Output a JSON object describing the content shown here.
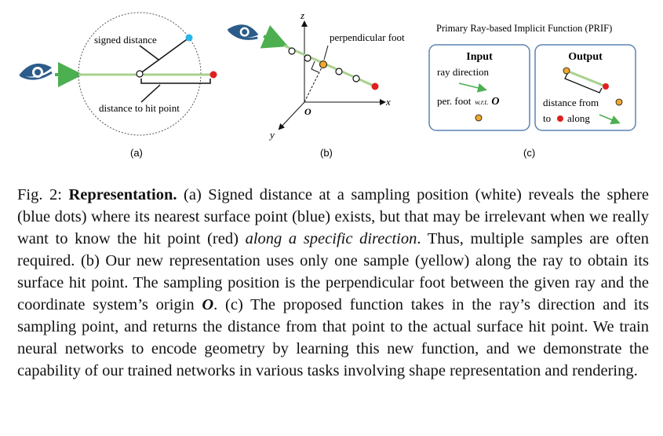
{
  "figure": {
    "panel_a": {
      "label_signed_distance": "signed distance",
      "label_distance_hit": "distance to hit point",
      "subcaption": "(a)"
    },
    "panel_b": {
      "label_perpendicular_foot": "perpendicular foot",
      "axis_z": "z",
      "axis_x": "x",
      "axis_y": "y",
      "origin": "O",
      "subcaption": "(b)"
    },
    "panel_c": {
      "title": "Primary Ray-based Implicit Function (PRIF)",
      "input_heading": "Input",
      "input_ray_direction": "ray direction",
      "input_perfoot_a": "per. foot",
      "input_perfoot_wrt": "w.r.t.",
      "input_perfoot_O": "O",
      "output_heading": "Output",
      "output_distance_from": "distance from",
      "output_to": "to",
      "output_along": "along",
      "subcaption": "(c)"
    },
    "colors": {
      "ray": "#a9d18e",
      "hit_point": "#e02020",
      "nearest_surface": "#29b6e8",
      "foot": "#f0a830",
      "eye": "#2b5c8a",
      "box_border": "#5b84b0"
    }
  },
  "caption": {
    "label": "Fig. 2:",
    "title": "Representation.",
    "t1": "(a) Signed distance at a sampling position (white) reveals the sphere (blue dots) where its nearest surface point (blue) exists, but that may be irrelevant when we really want to know the hit point (red)",
    "t1_italic": "along a specific direction",
    "t2": ". Thus, multiple samples are often required. (b) Our new representation uses only one sample (yellow) along the ray to obtain its surface hit point. The sampling position is the perpendicular foot between the given ray and the coordinate system’s origin",
    "origin": "O",
    "t3": ". (c) The proposed function takes in the ray’s direction and its sampling point, and returns the distance from that point to the actual surface hit point. We train neural networks to encode geometry by learning this new function, and we demonstrate the capability of our trained networks in various tasks involving shape representation and rendering."
  }
}
